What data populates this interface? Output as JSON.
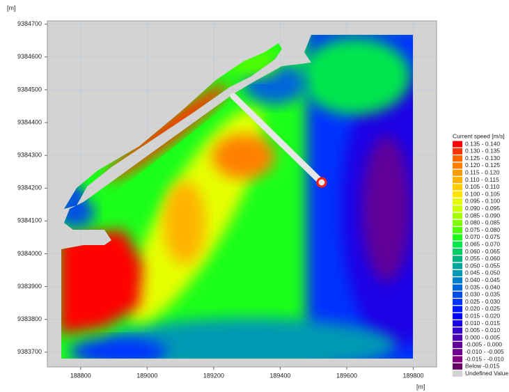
{
  "chart_data": {
    "type": "contour",
    "x_label": "[m]",
    "y_label": "[m]",
    "legend_title": "Current speed [m/s]",
    "xlim": [
      188700,
      189870
    ],
    "ylim": [
      9383655,
      9384710
    ],
    "xticks": [
      188800,
      189000,
      189200,
      189400,
      189600,
      189800
    ],
    "yticks": [
      9383700,
      9383800,
      9383900,
      9384000,
      9384100,
      9384200,
      9384300,
      9384400,
      9384500,
      9384600,
      9384700
    ],
    "grid": true,
    "levels": [
      {
        "label": "0.135 - 0.140",
        "color": "#ff0000"
      },
      {
        "label": "0.130 - 0.135",
        "color": "#ff3300"
      },
      {
        "label": "0.125 - 0.130",
        "color": "#ff6600"
      },
      {
        "label": "0.120 - 0.125",
        "color": "#ff8000"
      },
      {
        "label": "0.115 - 0.120",
        "color": "#ff9900"
      },
      {
        "label": "0.110 - 0.115",
        "color": "#ffb300"
      },
      {
        "label": "0.105 - 0.110",
        "color": "#ffcc00"
      },
      {
        "label": "0.100 - 0.105",
        "color": "#ffe600"
      },
      {
        "label": "0.095 - 0.100",
        "color": "#e6ff00"
      },
      {
        "label": "0.090 - 0.095",
        "color": "#ccff00"
      },
      {
        "label": "0.085 - 0.090",
        "color": "#a6ff00"
      },
      {
        "label": "0.080 - 0.085",
        "color": "#80ff00"
      },
      {
        "label": "0.075 - 0.080",
        "color": "#4dff00"
      },
      {
        "label": "0.070 - 0.075",
        "color": "#1aff1a"
      },
      {
        "label": "0.065 - 0.070",
        "color": "#00e64d"
      },
      {
        "label": "0.060 - 0.065",
        "color": "#00cc66"
      },
      {
        "label": "0.055 - 0.060",
        "color": "#00b380"
      },
      {
        "label": "0.050 - 0.055",
        "color": "#00a699"
      },
      {
        "label": "0.045 - 0.050",
        "color": "#0099b3"
      },
      {
        "label": "0.040 - 0.045",
        "color": "#0080cc"
      },
      {
        "label": "0.035 - 0.040",
        "color": "#0066d9"
      },
      {
        "label": "0.030 - 0.035",
        "color": "#004de6"
      },
      {
        "label": "0.025 - 0.030",
        "color": "#0033ff"
      },
      {
        "label": "0.020 - 0.025",
        "color": "#0019ff"
      },
      {
        "label": "0.015 - 0.020",
        "color": "#0000ff"
      },
      {
        "label": "0.010 - 0.015",
        "color": "#1a00e6"
      },
      {
        "label": "0.005 - 0.010",
        "color": "#3300cc"
      },
      {
        "label": "0.000 - 0.005",
        "color": "#4d00b3"
      },
      {
        "label": "-0.005 - 0.000",
        "color": "#600099"
      },
      {
        "label": "-0.010 - -0.005",
        "color": "#700090"
      },
      {
        "label": "-0.015 - -0.010",
        "color": "#800080"
      },
      {
        "label": "Below -0.015",
        "color": "#660066"
      },
      {
        "label": "Undefined Value",
        "color": "#d3d3d3"
      }
    ]
  }
}
